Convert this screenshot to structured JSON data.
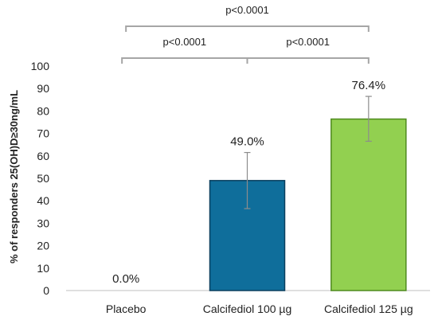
{
  "chart_data": {
    "type": "bar",
    "categories": [
      "Placebo",
      "Calcifediol 100 µg",
      "Calcifediol 125 µg"
    ],
    "values": [
      0.0,
      49.0,
      76.4
    ],
    "data_labels": [
      "0.0%",
      "49.0%",
      "76.4%"
    ],
    "error_bars": [
      {
        "low": 0.0,
        "high": 0.0
      },
      {
        "low": 36.5,
        "high": 61.5
      },
      {
        "low": 66.5,
        "high": 86.5
      }
    ],
    "colors": [
      "#ffffff",
      "#0f6e9b",
      "#92d050"
    ],
    "border_colors": [
      "#ffffff",
      "#0a3f5e",
      "#4e8a1e"
    ],
    "ylabel": "% of responders 25(OH)D≥30ng/mL",
    "xlabel": "",
    "ylim": [
      0,
      100
    ],
    "yticks": [
      0,
      10,
      20,
      30,
      40,
      50,
      60,
      70,
      80,
      90,
      100
    ],
    "grid": false,
    "significance": [
      {
        "from": 0,
        "to": 1,
        "label": "p<0.0001",
        "level": 1
      },
      {
        "from": 1,
        "to": 2,
        "label": "p<0.0001",
        "level": 1
      },
      {
        "from": 0,
        "to": 2,
        "label": "p<0.0001",
        "level": 2
      }
    ]
  }
}
